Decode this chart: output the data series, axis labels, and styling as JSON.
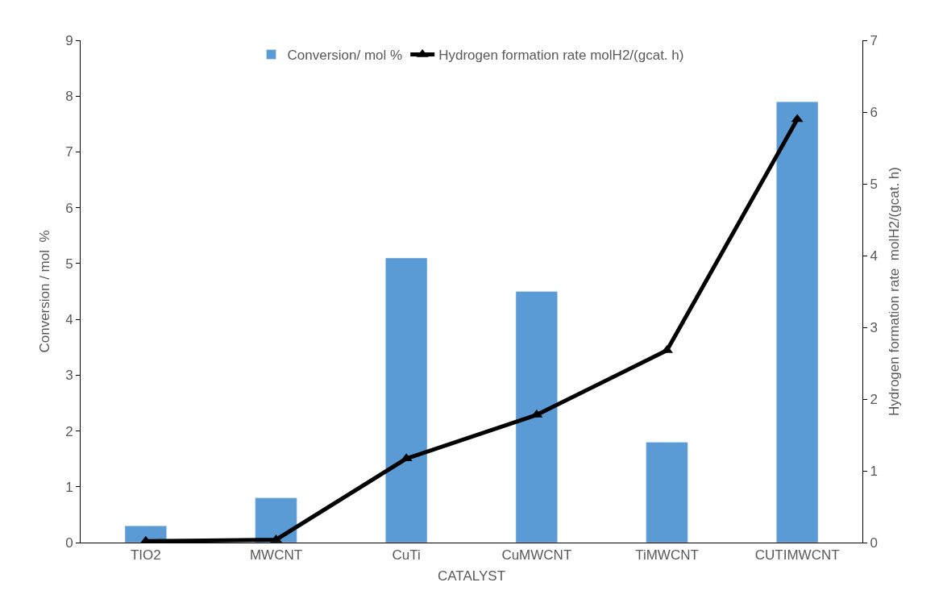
{
  "chart_data": {
    "type": "bar",
    "xlabel": "CATALYST",
    "ylabel": "Conversion / mol  %",
    "y2label": "Hydrogen formation rate  molH2/(gcat. h)",
    "categories": [
      "TIO2",
      "MWCNT",
      "CuTi",
      "CuMWCNT",
      "TiMWCNT",
      "CUTIMWCNT"
    ],
    "series": [
      {
        "name": "Conversion/ mol %",
        "color": "#5b9bd5",
        "values": [
          0.3,
          0.8,
          5.1,
          4.5,
          1.8,
          7.9
        ]
      },
      {
        "name": "Hydrogen formation rate molH2/(gcat. h)",
        "type": "line",
        "axis": "y2",
        "color": "#000000",
        "marker": "triangle",
        "values": [
          0.02,
          0.04,
          1.17,
          1.78,
          2.68,
          5.9
        ]
      }
    ],
    "ylim": [
      0,
      9
    ],
    "yticks": [
      0,
      1,
      2,
      3,
      4,
      5,
      6,
      7,
      8,
      9
    ],
    "y2lim": [
      0,
      7
    ],
    "y2ticks": [
      0,
      1,
      2,
      3,
      4,
      5,
      6,
      7
    ],
    "legend": "top"
  }
}
